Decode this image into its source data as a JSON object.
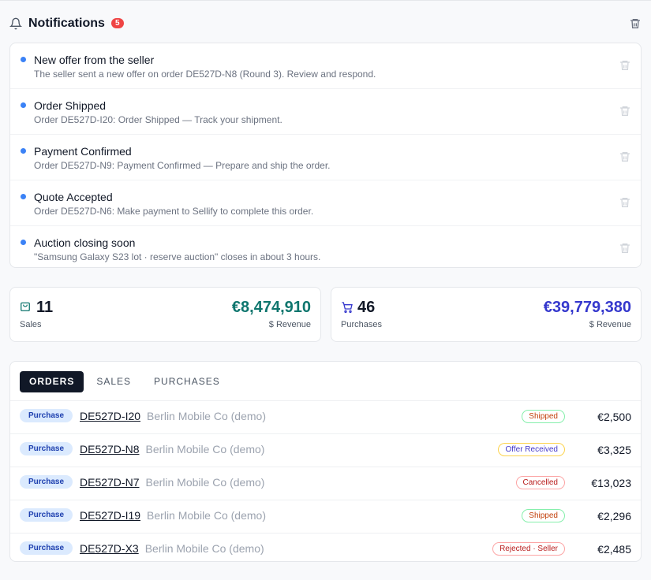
{
  "header": {
    "title": "Notifications",
    "count": 5
  },
  "notifications": [
    {
      "title": "New offer from the seller",
      "body": "The seller sent a new offer on order DE527D-N8 (Round 3). Review and respond."
    },
    {
      "title": "Order Shipped",
      "body": "Order DE527D-I20: Order Shipped — Track your shipment."
    },
    {
      "title": "Payment Confirmed",
      "body": "Order DE527D-N9: Payment Confirmed — Prepare and ship the order."
    },
    {
      "title": "Quote Accepted",
      "body": "Order DE527D-N6: Make payment to Sellify to complete this order."
    },
    {
      "title": "Auction closing soon",
      "body": "\"Samsung Galaxy S23 lot · reserve auction\" closes in about 3 hours."
    }
  ],
  "stats": [
    {
      "count": 11,
      "count_label": "Sales",
      "amount": "€8,474,910",
      "amount_label": "$ Revenue",
      "color": "#0f766e"
    },
    {
      "count": 46,
      "count_label": "Purchases",
      "amount": "€39,779,380",
      "amount_label": "$ Revenue",
      "color": "#3538cd"
    }
  ],
  "tabs": [
    "ORDERS",
    "SALES",
    "PURCHASES"
  ],
  "orders": [
    {
      "type": "Purchase",
      "id": "DE527D-I20",
      "party": "Berlin Mobile Co (demo)",
      "status": "Shipped",
      "status_color": "#c2410c",
      "status_border": "#86efac",
      "amount": "€2,500"
    },
    {
      "type": "Purchase",
      "id": "DE527D-N8",
      "party": "Berlin Mobile Co (demo)",
      "status": "Offer Received",
      "status_color": "#4338ca",
      "status_border": "#fcd34d",
      "amount": "€3,325"
    },
    {
      "type": "Purchase",
      "id": "DE527D-N7",
      "party": "Berlin Mobile Co (demo)",
      "status": "Cancelled",
      "status_color": "#b91c1c",
      "status_border": "#fca5a5",
      "amount": "€13,023"
    },
    {
      "type": "Purchase",
      "id": "DE527D-I19",
      "party": "Berlin Mobile Co (demo)",
      "status": "Shipped",
      "status_color": "#c2410c",
      "status_border": "#86efac",
      "amount": "€2,296"
    },
    {
      "type": "Purchase",
      "id": "DE527D-X3",
      "party": "Berlin Mobile Co (demo)",
      "status": "Rejected · Seller",
      "status_color": "#b91c1c",
      "status_border": "#fca5a5",
      "amount": "€2,485"
    }
  ]
}
